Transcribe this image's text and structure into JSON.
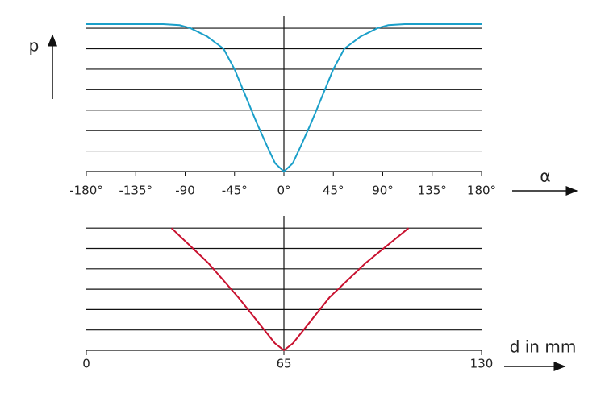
{
  "chart_data": [
    {
      "type": "line",
      "xlabel": "α",
      "ylabel": "p",
      "x": [
        -180,
        -110,
        -95,
        -85,
        -70,
        -55,
        -45,
        -35,
        -25,
        -15,
        -8,
        0,
        8,
        15,
        25,
        35,
        45,
        55,
        70,
        85,
        95,
        110,
        180
      ],
      "series": [
        {
          "color": "#1a9fc9",
          "values": [
            7.2,
            7.2,
            7.15,
            7.0,
            6.6,
            6.0,
            5.0,
            3.7,
            2.4,
            1.2,
            0.4,
            0,
            0.4,
            1.2,
            2.4,
            3.7,
            5.0,
            6.0,
            6.6,
            7.0,
            7.15,
            7.2,
            7.2
          ]
        }
      ],
      "xlim": [
        -180,
        180
      ],
      "xticks": [
        {
          "value": -180,
          "label": "-180°"
        },
        {
          "value": -135,
          "label": "-135°"
        },
        -90,
        {
          "value": -45,
          "label": "-45°"
        },
        {
          "value": 0,
          "label": "0°"
        },
        {
          "value": 45,
          "label": "45°"
        },
        {
          "value": 90,
          "label": "90°"
        },
        {
          "value": 135,
          "label": "135°"
        },
        {
          "value": 180,
          "label": "180°"
        }
      ],
      "ylim": [
        0,
        7.2
      ],
      "yticks": [
        0,
        1,
        2,
        3,
        4,
        5,
        6,
        7
      ],
      "grid": true
    },
    {
      "type": "line",
      "xlabel": "d in mm",
      "x": [
        28,
        40,
        50,
        58,
        62,
        65,
        68,
        72,
        80,
        92,
        106
      ],
      "series": [
        {
          "color": "#c8102e",
          "values": [
            6,
            4.3,
            2.6,
            1.1,
            0.35,
            0,
            0.35,
            1.1,
            2.6,
            4.3,
            6
          ]
        }
      ],
      "xlim": [
        0,
        130
      ],
      "xticks": [
        0,
        65,
        130
      ],
      "ylim": [
        0,
        6.6
      ],
      "yticks": [
        0,
        1,
        2,
        3,
        4,
        5,
        6
      ],
      "grid": true
    }
  ]
}
